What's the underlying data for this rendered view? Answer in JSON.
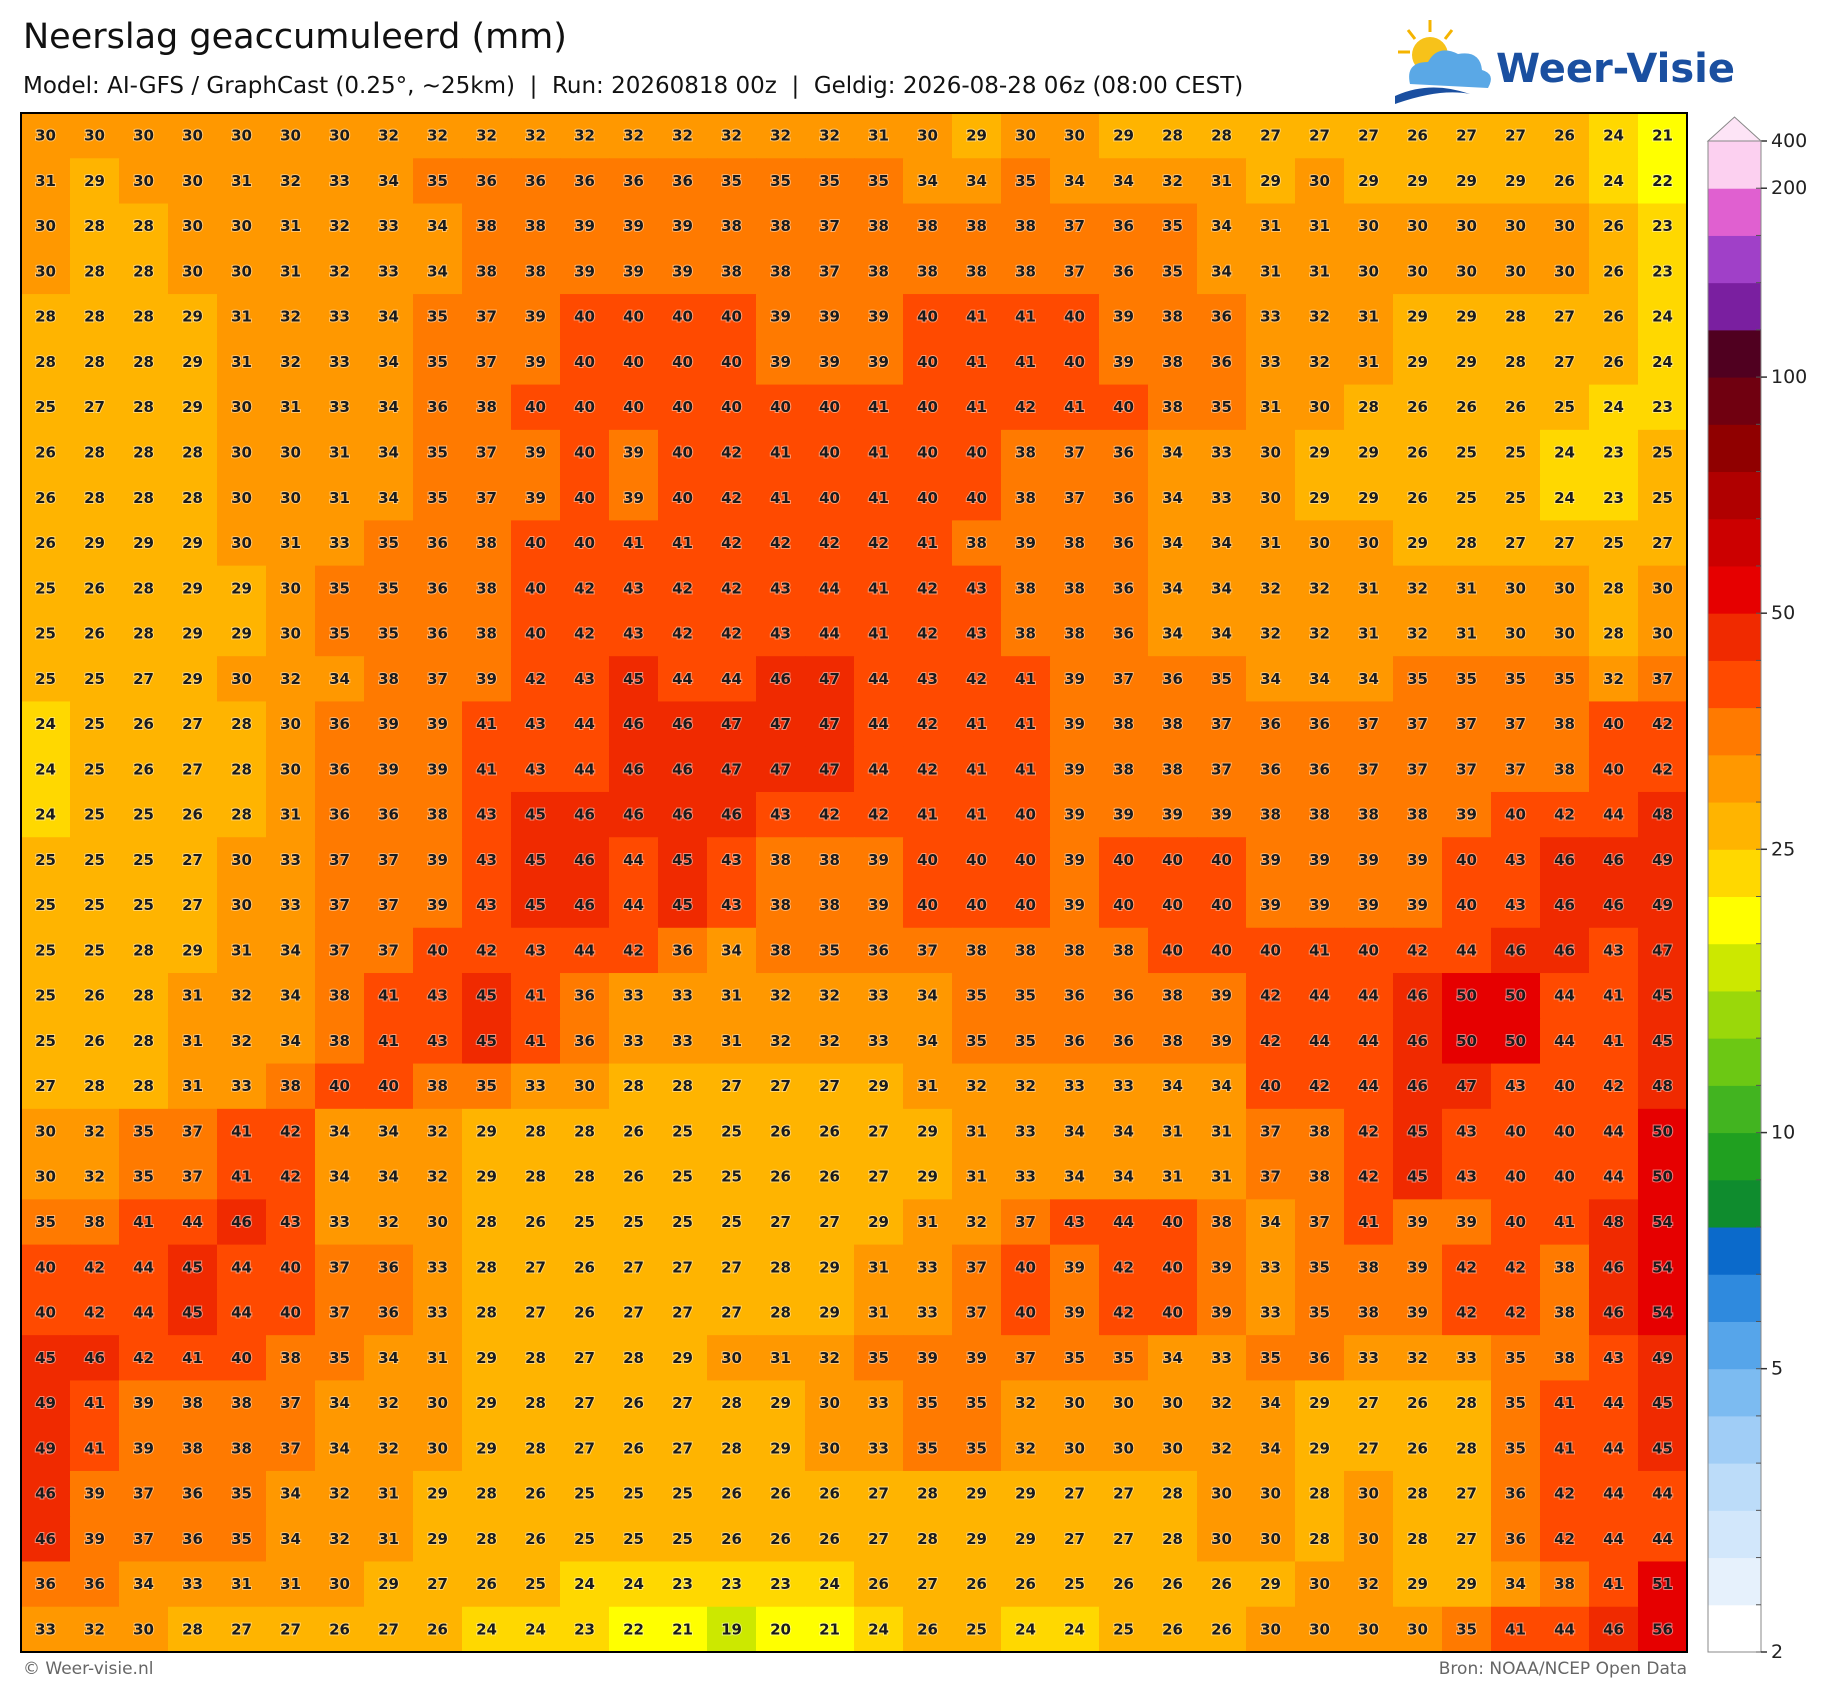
{
  "header": {
    "title": "Neerslag geaccumuleerd (mm)",
    "subtitle": "Model: AI-GFS / GraphCast (0.25°, ~25km)  |  Run: 20260818 00z  |  Geldig: 2026-08-28 06z (08:00 CEST)"
  },
  "logo": {
    "text": "Weer-Visie"
  },
  "map": {
    "rows": [
      [
        30,
        30,
        30,
        30,
        30,
        30,
        30,
        32,
        32,
        32,
        32,
        32,
        32,
        32,
        32,
        32,
        32,
        31,
        30,
        29,
        30,
        30,
        29,
        28,
        28,
        27,
        27,
        27,
        26,
        27,
        27,
        26,
        24,
        21
      ],
      [
        31,
        29,
        30,
        30,
        31,
        32,
        33,
        34,
        35,
        36,
        36,
        36,
        36,
        36,
        35,
        35,
        35,
        35,
        34,
        34,
        35,
        34,
        34,
        32,
        31,
        29,
        30,
        29,
        29,
        29,
        29,
        26,
        24,
        22
      ],
      [
        30,
        28,
        28,
        30,
        30,
        31,
        32,
        33,
        34,
        38,
        38,
        39,
        39,
        39,
        38,
        38,
        37,
        38,
        38,
        38,
        38,
        37,
        36,
        35,
        34,
        31,
        31,
        30,
        30,
        30,
        30,
        30,
        26,
        23
      ],
      [
        30,
        28,
        28,
        30,
        30,
        31,
        32,
        33,
        34,
        38,
        38,
        39,
        39,
        39,
        38,
        38,
        37,
        38,
        38,
        38,
        38,
        37,
        36,
        35,
        34,
        31,
        31,
        30,
        30,
        30,
        30,
        30,
        26,
        23
      ],
      [
        28,
        28,
        28,
        29,
        31,
        32,
        33,
        34,
        35,
        37,
        39,
        40,
        40,
        40,
        40,
        39,
        39,
        39,
        40,
        41,
        41,
        40,
        39,
        38,
        36,
        33,
        32,
        31,
        29,
        29,
        28,
        27,
        26,
        24
      ],
      [
        28,
        28,
        28,
        29,
        31,
        32,
        33,
        34,
        35,
        37,
        39,
        40,
        40,
        40,
        40,
        39,
        39,
        39,
        40,
        41,
        41,
        40,
        39,
        38,
        36,
        33,
        32,
        31,
        29,
        29,
        28,
        27,
        26,
        24
      ],
      [
        25,
        27,
        28,
        29,
        30,
        31,
        33,
        34,
        36,
        38,
        40,
        40,
        40,
        40,
        40,
        40,
        40,
        41,
        40,
        41,
        42,
        41,
        40,
        38,
        35,
        31,
        30,
        28,
        26,
        26,
        26,
        25,
        24,
        23
      ],
      [
        26,
        28,
        28,
        28,
        30,
        30,
        31,
        34,
        35,
        37,
        39,
        40,
        39,
        40,
        42,
        41,
        40,
        41,
        40,
        40,
        38,
        37,
        36,
        34,
        33,
        30,
        29,
        29,
        26,
        25,
        25,
        24,
        23,
        25
      ],
      [
        26,
        28,
        28,
        28,
        30,
        30,
        31,
        34,
        35,
        37,
        39,
        40,
        39,
        40,
        42,
        41,
        40,
        41,
        40,
        40,
        38,
        37,
        36,
        34,
        33,
        30,
        29,
        29,
        26,
        25,
        25,
        24,
        23,
        25
      ],
      [
        26,
        29,
        29,
        29,
        30,
        31,
        33,
        35,
        36,
        38,
        40,
        40,
        41,
        41,
        42,
        42,
        42,
        42,
        41,
        38,
        39,
        38,
        36,
        34,
        34,
        31,
        30,
        30,
        29,
        28,
        27,
        27,
        25,
        27
      ],
      [
        25,
        26,
        28,
        29,
        29,
        30,
        35,
        35,
        36,
        38,
        40,
        42,
        43,
        42,
        42,
        43,
        44,
        41,
        42,
        43,
        38,
        38,
        36,
        34,
        34,
        32,
        32,
        31,
        32,
        31,
        30,
        30,
        28,
        30
      ],
      [
        25,
        26,
        28,
        29,
        29,
        30,
        35,
        35,
        36,
        38,
        40,
        42,
        43,
        42,
        42,
        43,
        44,
        41,
        42,
        43,
        38,
        38,
        36,
        34,
        34,
        32,
        32,
        31,
        32,
        31,
        30,
        30,
        28,
        30
      ],
      [
        25,
        25,
        27,
        29,
        30,
        32,
        34,
        38,
        37,
        39,
        42,
        43,
        45,
        44,
        44,
        46,
        47,
        44,
        43,
        42,
        41,
        39,
        37,
        36,
        35,
        34,
        34,
        34,
        35,
        35,
        35,
        35,
        32,
        37
      ],
      [
        24,
        25,
        26,
        27,
        28,
        30,
        36,
        39,
        39,
        41,
        43,
        44,
        46,
        46,
        47,
        47,
        47,
        44,
        42,
        41,
        41,
        39,
        38,
        38,
        37,
        36,
        36,
        37,
        37,
        37,
        37,
        38,
        40,
        42
      ],
      [
        24,
        25,
        26,
        27,
        28,
        30,
        36,
        39,
        39,
        41,
        43,
        44,
        46,
        46,
        47,
        47,
        47,
        44,
        42,
        41,
        41,
        39,
        38,
        38,
        37,
        36,
        36,
        37,
        37,
        37,
        37,
        38,
        40,
        42
      ],
      [
        24,
        25,
        25,
        26,
        28,
        31,
        36,
        36,
        38,
        43,
        45,
        46,
        46,
        46,
        46,
        43,
        42,
        42,
        41,
        41,
        40,
        39,
        39,
        39,
        39,
        38,
        38,
        38,
        38,
        39,
        40,
        42,
        44,
        48
      ],
      [
        25,
        25,
        25,
        27,
        30,
        33,
        37,
        37,
        39,
        43,
        45,
        46,
        44,
        45,
        43,
        38,
        38,
        39,
        40,
        40,
        40,
        39,
        40,
        40,
        40,
        39,
        39,
        39,
        39,
        40,
        43,
        46,
        46,
        49
      ],
      [
        25,
        25,
        25,
        27,
        30,
        33,
        37,
        37,
        39,
        43,
        45,
        46,
        44,
        45,
        43,
        38,
        38,
        39,
        40,
        40,
        40,
        39,
        40,
        40,
        40,
        39,
        39,
        39,
        39,
        40,
        43,
        46,
        46,
        49
      ],
      [
        25,
        25,
        28,
        29,
        31,
        34,
        37,
        37,
        40,
        42,
        43,
        44,
        42,
        36,
        34,
        38,
        35,
        36,
        37,
        38,
        38,
        38,
        38,
        40,
        40,
        40,
        41,
        40,
        42,
        44,
        46,
        46,
        43,
        47
      ],
      [
        25,
        26,
        28,
        31,
        32,
        34,
        38,
        41,
        43,
        45,
        41,
        36,
        33,
        33,
        31,
        32,
        32,
        33,
        34,
        35,
        35,
        36,
        36,
        38,
        39,
        42,
        44,
        44,
        46,
        50,
        50,
        44,
        41,
        45
      ],
      [
        25,
        26,
        28,
        31,
        32,
        34,
        38,
        41,
        43,
        45,
        41,
        36,
        33,
        33,
        31,
        32,
        32,
        33,
        34,
        35,
        35,
        36,
        36,
        38,
        39,
        42,
        44,
        44,
        46,
        50,
        50,
        44,
        41,
        45
      ],
      [
        27,
        28,
        28,
        31,
        33,
        38,
        40,
        40,
        38,
        35,
        33,
        30,
        28,
        28,
        27,
        27,
        27,
        29,
        31,
        32,
        32,
        33,
        33,
        34,
        34,
        40,
        42,
        44,
        46,
        47,
        43,
        40,
        42,
        48
      ],
      [
        30,
        32,
        35,
        37,
        41,
        42,
        34,
        34,
        32,
        29,
        28,
        28,
        26,
        25,
        25,
        26,
        26,
        27,
        29,
        31,
        33,
        34,
        34,
        31,
        31,
        37,
        38,
        42,
        45,
        43,
        40,
        40,
        44,
        50
      ],
      [
        30,
        32,
        35,
        37,
        41,
        42,
        34,
        34,
        32,
        29,
        28,
        28,
        26,
        25,
        25,
        26,
        26,
        27,
        29,
        31,
        33,
        34,
        34,
        31,
        31,
        37,
        38,
        42,
        45,
        43,
        40,
        40,
        44,
        50
      ],
      [
        35,
        38,
        41,
        44,
        46,
        43,
        33,
        32,
        30,
        28,
        26,
        25,
        25,
        25,
        25,
        27,
        27,
        29,
        31,
        32,
        37,
        43,
        44,
        40,
        38,
        34,
        37,
        41,
        39,
        39,
        40,
        41,
        48,
        54
      ],
      [
        40,
        42,
        44,
        45,
        44,
        40,
        37,
        36,
        33,
        28,
        27,
        26,
        27,
        27,
        27,
        28,
        29,
        31,
        33,
        37,
        40,
        39,
        42,
        40,
        39,
        33,
        35,
        38,
        39,
        42,
        42,
        38,
        46,
        54
      ],
      [
        40,
        42,
        44,
        45,
        44,
        40,
        37,
        36,
        33,
        28,
        27,
        26,
        27,
        27,
        27,
        28,
        29,
        31,
        33,
        37,
        40,
        39,
        42,
        40,
        39,
        33,
        35,
        38,
        39,
        42,
        42,
        38,
        46,
        54
      ],
      [
        45,
        46,
        42,
        41,
        40,
        38,
        35,
        34,
        31,
        29,
        28,
        27,
        28,
        29,
        30,
        31,
        32,
        35,
        39,
        39,
        37,
        35,
        35,
        34,
        33,
        35,
        36,
        33,
        32,
        33,
        35,
        38,
        43,
        49
      ],
      [
        49,
        41,
        39,
        38,
        38,
        37,
        34,
        32,
        30,
        29,
        28,
        27,
        26,
        27,
        28,
        29,
        30,
        33,
        35,
        35,
        32,
        30,
        30,
        30,
        32,
        34,
        29,
        27,
        26,
        28,
        35,
        41,
        44,
        45
      ],
      [
        49,
        41,
        39,
        38,
        38,
        37,
        34,
        32,
        30,
        29,
        28,
        27,
        26,
        27,
        28,
        29,
        30,
        33,
        35,
        35,
        32,
        30,
        30,
        30,
        32,
        34,
        29,
        27,
        26,
        28,
        35,
        41,
        44,
        45
      ],
      [
        46,
        39,
        37,
        36,
        35,
        34,
        32,
        31,
        29,
        28,
        26,
        25,
        25,
        25,
        26,
        26,
        26,
        27,
        28,
        29,
        29,
        27,
        27,
        28,
        30,
        30,
        28,
        30,
        28,
        27,
        36,
        42,
        44,
        44
      ],
      [
        46,
        39,
        37,
        36,
        35,
        34,
        32,
        31,
        29,
        28,
        26,
        25,
        25,
        25,
        26,
        26,
        26,
        27,
        28,
        29,
        29,
        27,
        27,
        28,
        30,
        30,
        28,
        30,
        28,
        27,
        36,
        42,
        44,
        44
      ],
      [
        36,
        36,
        34,
        33,
        31,
        31,
        30,
        29,
        27,
        26,
        25,
        24,
        24,
        23,
        23,
        23,
        24,
        26,
        27,
        26,
        26,
        25,
        26,
        26,
        26,
        29,
        30,
        32,
        29,
        29,
        34,
        38,
        41,
        51
      ],
      [
        33,
        32,
        30,
        28,
        27,
        27,
        26,
        27,
        26,
        24,
        24,
        23,
        22,
        21,
        19,
        20,
        21,
        24,
        26,
        25,
        24,
        24,
        25,
        26,
        26,
        30,
        30,
        30,
        30,
        35,
        41,
        44,
        46,
        56
      ]
    ]
  },
  "colorbar": {
    "levels": [
      2,
      2.5,
      3,
      3.5,
      4,
      4.5,
      5,
      6,
      7,
      8,
      9,
      10,
      12.5,
      15,
      17.5,
      20,
      22.5,
      25,
      30,
      35,
      40,
      45,
      50,
      60,
      70,
      80,
      90,
      100,
      125,
      150,
      175,
      200,
      400
    ],
    "colors": [
      "#ffffff",
      "#e6f1fc",
      "#d2e7fb",
      "#bcdcf9",
      "#a0cdf6",
      "#7cbbf1",
      "#56a5ea",
      "#2f8ade",
      "#0b6acb",
      "#0f8c2e",
      "#20a020",
      "#42b420",
      "#6cc814",
      "#9ad80a",
      "#cce800",
      "#ffff00",
      "#ffd800",
      "#ffb400",
      "#ff9800",
      "#ff7a00",
      "#ff4a00",
      "#f02a00",
      "#e60000",
      "#cc0000",
      "#b00000",
      "#900000",
      "#700010",
      "#500020",
      "#7a1fa0",
      "#a040c8",
      "#e060d0",
      "#fcd0f0"
    ],
    "ticks": [
      400,
      200,
      100,
      50,
      25,
      10,
      5,
      2
    ]
  },
  "footer": {
    "left": "© Weer-visie.nl",
    "right": "Bron: NOAA/NCEP Open Data"
  }
}
